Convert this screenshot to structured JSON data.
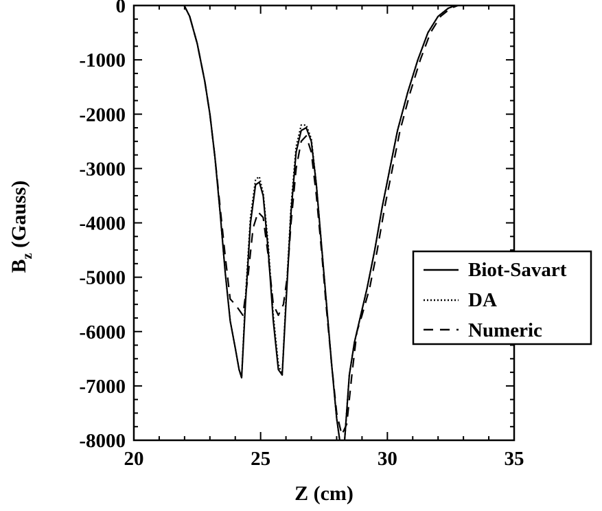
{
  "chart_data": {
    "type": "line",
    "xlabel": "Z (cm)",
    "ylabel_main": "B",
    "ylabel_sub": "z",
    "ylabel_rest": " (Gauss)",
    "xlim": [
      20,
      35
    ],
    "ylim": [
      -8000,
      0
    ],
    "xticks": [
      20,
      25,
      30,
      35
    ],
    "xtick_labels": [
      "20",
      "25",
      "30",
      "35"
    ],
    "yticks": [
      0,
      -1000,
      -2000,
      -3000,
      -4000,
      -5000,
      -6000,
      -7000,
      -8000
    ],
    "ytick_labels": [
      "0",
      "-1000",
      "-2000",
      "-3000",
      "-4000",
      "-5000",
      "-6000",
      "-7000",
      "-8000"
    ],
    "grid": false,
    "legend_position": "right",
    "series": [
      {
        "name": "Biot-Savart",
        "style": "solid",
        "x": [
          20.0,
          20.5,
          21.0,
          21.5,
          21.9,
          22.2,
          22.5,
          22.8,
          23.0,
          23.2,
          23.4,
          23.6,
          23.8,
          24.0,
          24.15,
          24.25,
          24.4,
          24.6,
          24.8,
          24.95,
          25.1,
          25.3,
          25.5,
          25.7,
          25.85,
          26.0,
          26.2,
          26.4,
          26.6,
          26.8,
          27.0,
          27.2,
          27.4,
          27.6,
          27.8,
          28.0,
          28.15,
          28.3,
          28.5,
          28.7,
          28.9,
          29.2,
          29.5,
          29.8,
          30.1,
          30.4,
          30.8,
          31.2,
          31.6,
          32.0,
          32.4,
          32.8,
          33.1,
          33.5,
          34.0,
          35.0
        ],
        "y": [
          50,
          70,
          90,
          100,
          80,
          -200,
          -700,
          -1400,
          -2000,
          -2800,
          -3800,
          -4900,
          -5800,
          -6300,
          -6700,
          -6850,
          -5500,
          -4000,
          -3300,
          -3250,
          -3500,
          -4500,
          -5800,
          -6700,
          -6800,
          -5500,
          -3800,
          -2700,
          -2300,
          -2250,
          -2500,
          -3300,
          -4400,
          -5500,
          -6600,
          -7600,
          -8100,
          -8100,
          -6800,
          -6200,
          -5800,
          -5200,
          -4500,
          -3700,
          -3000,
          -2300,
          -1600,
          -1000,
          -500,
          -200,
          -50,
          20,
          60,
          80,
          40,
          30
        ]
      },
      {
        "name": "DA",
        "style": "dotted",
        "x": [
          20.0,
          20.5,
          21.0,
          21.5,
          21.9,
          22.2,
          22.5,
          22.8,
          23.0,
          23.2,
          23.4,
          23.6,
          23.8,
          24.0,
          24.15,
          24.25,
          24.4,
          24.6,
          24.8,
          24.95,
          25.1,
          25.3,
          25.5,
          25.7,
          25.85,
          26.0,
          26.2,
          26.4,
          26.6,
          26.8,
          27.0,
          27.2,
          27.4,
          27.6,
          27.8,
          28.0,
          28.15,
          28.3,
          28.5,
          28.7,
          28.9,
          29.2,
          29.5,
          29.8,
          30.1,
          30.4,
          30.8,
          31.2,
          31.6,
          32.0,
          32.4,
          32.8,
          33.1,
          33.5,
          34.0,
          35.0
        ],
        "y": [
          50,
          70,
          90,
          100,
          80,
          -200,
          -700,
          -1400,
          -2000,
          -2800,
          -3800,
          -4900,
          -5800,
          -6300,
          -6700,
          -6850,
          -5400,
          -3900,
          -3200,
          -3150,
          -3450,
          -4400,
          -5700,
          -6600,
          -6800,
          -5400,
          -3700,
          -2600,
          -2200,
          -2200,
          -2450,
          -3300,
          -4400,
          -5500,
          -6600,
          -7600,
          -8100,
          -8100,
          -6800,
          -6200,
          -5800,
          -5200,
          -4500,
          -3700,
          -3000,
          -2300,
          -1600,
          -1000,
          -500,
          -200,
          -50,
          20,
          60,
          80,
          40,
          30
        ]
      },
      {
        "name": "Numeric",
        "style": "dashed",
        "x": [
          20.0,
          20.5,
          21.0,
          21.5,
          21.9,
          22.2,
          22.5,
          22.8,
          23.0,
          23.2,
          23.4,
          23.6,
          23.8,
          24.0,
          24.15,
          24.3,
          24.5,
          24.7,
          24.9,
          25.1,
          25.3,
          25.5,
          25.7,
          25.9,
          26.05,
          26.2,
          26.4,
          26.6,
          26.8,
          27.0,
          27.2,
          27.4,
          27.6,
          27.8,
          28.0,
          28.2,
          28.4,
          28.6,
          28.8,
          29.0,
          29.3,
          29.6,
          29.9,
          30.2,
          30.5,
          30.9,
          31.3,
          31.7,
          32.1,
          32.5,
          32.9,
          33.2,
          33.6,
          34.0,
          35.0
        ],
        "y": [
          50,
          70,
          90,
          100,
          80,
          -200,
          -700,
          -1400,
          -2000,
          -2800,
          -3700,
          -4600,
          -5400,
          -5500,
          -5600,
          -5700,
          -5000,
          -4100,
          -3800,
          -3900,
          -4600,
          -5500,
          -5700,
          -5500,
          -5000,
          -4000,
          -3000,
          -2500,
          -2400,
          -2700,
          -3500,
          -4500,
          -5600,
          -6600,
          -7500,
          -7900,
          -7700,
          -6800,
          -6000,
          -5700,
          -5200,
          -4500,
          -3700,
          -3000,
          -2300,
          -1600,
          -1000,
          -500,
          -200,
          -50,
          20,
          60,
          80,
          40,
          30
        ]
      }
    ]
  }
}
